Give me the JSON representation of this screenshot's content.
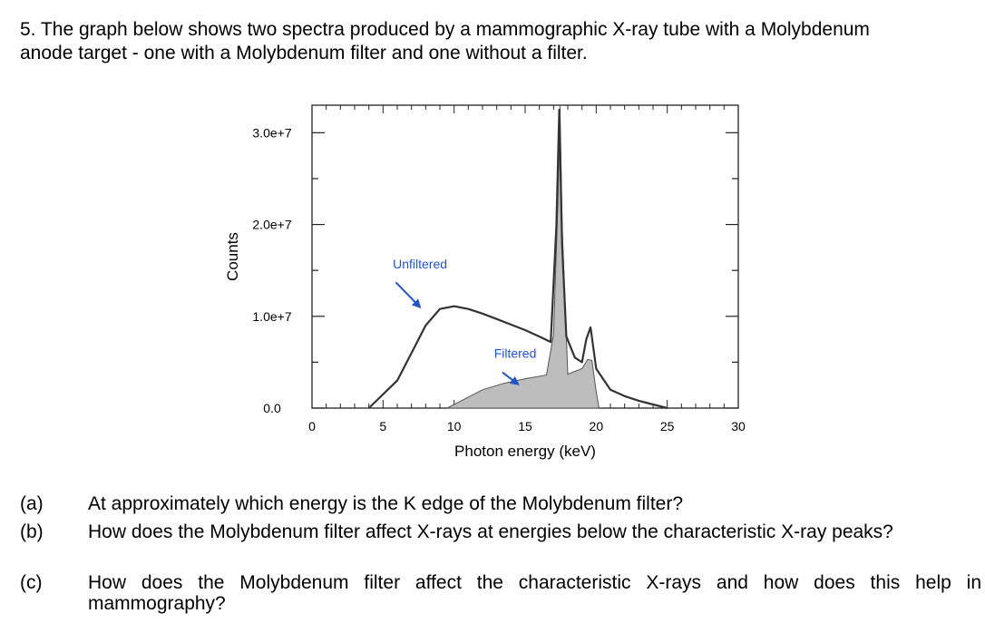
{
  "question": {
    "line1": "5. The graph below shows two spectra produced by a mammographic X-ray tube with a Molybdenum",
    "line2": "anode target - one with a Molybdenum filter and one without a filter."
  },
  "chart_data": {
    "type": "area",
    "xlabel": "Photon energy (keV)",
    "ylabel": "Counts",
    "xlim": [
      0,
      30
    ],
    "ylim": [
      0,
      33000000
    ],
    "x_ticks": [
      "0",
      "5",
      "10",
      "15",
      "20",
      "25",
      "30"
    ],
    "y_ticks": [
      "0.0",
      "1.0e+7",
      "2.0e+7",
      "3.0e+7"
    ],
    "grid": false,
    "series": [
      {
        "name": "Unfiltered",
        "x": [
          4.0,
          6.0,
          7.0,
          8.0,
          9.0,
          10.0,
          11.0,
          12.0,
          13.0,
          14.0,
          15.0,
          16.0,
          16.8,
          17.2,
          17.4,
          17.6,
          17.9,
          18.5,
          19.0,
          19.3,
          19.6,
          20.0,
          21.0,
          22.0,
          23.0,
          24.0,
          25.0
        ],
        "y": [
          0,
          3000000,
          6000000,
          9000000,
          10800000,
          11100000,
          10800000,
          10300000,
          9700000,
          9100000,
          8500000,
          7800000,
          7200000,
          20000000,
          32500000,
          18000000,
          7800000,
          5500000,
          5000000,
          7500000,
          8800000,
          4300000,
          2000000,
          1300000,
          800000,
          400000,
          0
        ]
      },
      {
        "name": "Filtered",
        "x": [
          9.5,
          10.5,
          12.0,
          13.5,
          15.0,
          16.5,
          17.0,
          17.3,
          17.45,
          17.6,
          18.0,
          18.5,
          19.0,
          19.4,
          19.7,
          20.0,
          20.2
        ],
        "y": [
          0,
          800000,
          2000000,
          2700000,
          3200000,
          3600000,
          8000000,
          22000000,
          33000000,
          20000000,
          3700000,
          4000000,
          4300000,
          5300000,
          5200000,
          1800000,
          0
        ]
      }
    ],
    "annotations": [
      {
        "text": "Unfiltered",
        "x": 7.6,
        "y": 15200000
      },
      {
        "text": "Filtered",
        "x": 14.3,
        "y": 5500000
      }
    ],
    "colors": {
      "filtered_fill": "#bdbdbd",
      "arrow": "#2454c4",
      "label": "#2454c4",
      "line": "#333333"
    }
  },
  "questions": [
    {
      "label": "(a)",
      "text": "At approximately which energy is the K edge of the Molybdenum filter?"
    },
    {
      "label": "(b)",
      "text": "How does the Molybdenum filter affect X-rays at energies below the characteristic X-ray peaks?"
    },
    {
      "label": "(c)",
      "text": "How does the Molybdenum filter affect the characteristic X-rays and how does this help in mammography?"
    }
  ]
}
